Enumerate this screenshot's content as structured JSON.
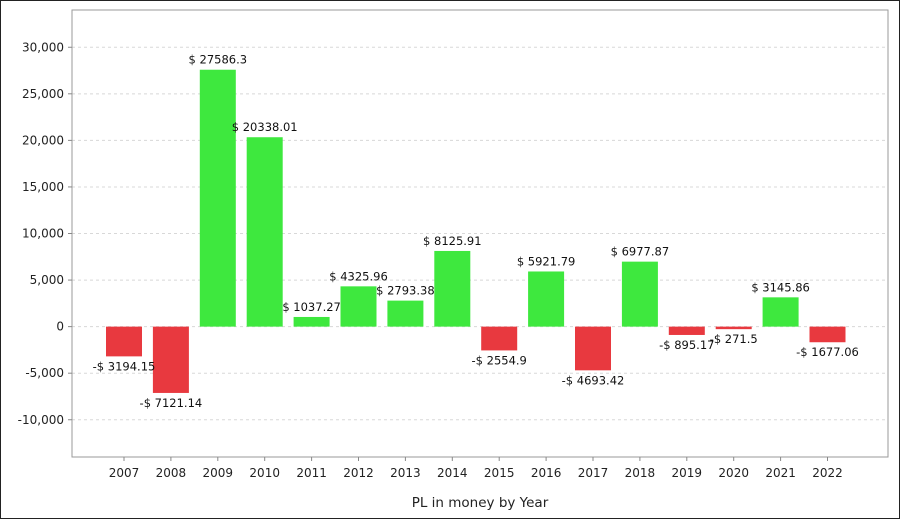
{
  "chart_data": {
    "type": "bar",
    "categories": [
      "2007",
      "2008",
      "2009",
      "2010",
      "2011",
      "2012",
      "2013",
      "2014",
      "2015",
      "2016",
      "2017",
      "2018",
      "2019",
      "2020",
      "2021",
      "2022"
    ],
    "values": [
      -3194.15,
      -7121.14,
      27586.3,
      20338.01,
      1037.27,
      4325.96,
      2793.38,
      8125.91,
      -2554.9,
      5921.79,
      -4693.42,
      6977.87,
      -895.17,
      -271.5,
      3145.86,
      -1677.06
    ],
    "data_labels": [
      "-$ 3194.15",
      "-$ 7121.14",
      "$ 27586.3",
      "$ 20338.01",
      "$ 1037.27",
      "$ 4325.96",
      "$ 2793.38",
      "$ 8125.91",
      "-$ 2554.9",
      "$ 5921.79",
      "-$ 4693.42",
      "$ 6977.87",
      "-$ 895.17",
      "-$ 271.5",
      "$ 3145.86",
      "-$ 1677.06"
    ],
    "title": "",
    "xlabel": "PL in money by Year",
    "ylabel": "",
    "ylim": [
      -14000,
      34000
    ],
    "yticks": [
      -10000,
      -5000,
      0,
      5000,
      10000,
      15000,
      20000,
      25000,
      30000
    ],
    "ytick_labels": [
      "-10,000",
      "-5,000",
      "0",
      "5,000",
      "10,000",
      "15,000",
      "20,000",
      "25,000",
      "30,000"
    ],
    "grid": true,
    "colors": {
      "positive": "#3ee83e",
      "negative": "#e8393f",
      "grid": "#d8d8d8",
      "axis": "#888888"
    }
  }
}
